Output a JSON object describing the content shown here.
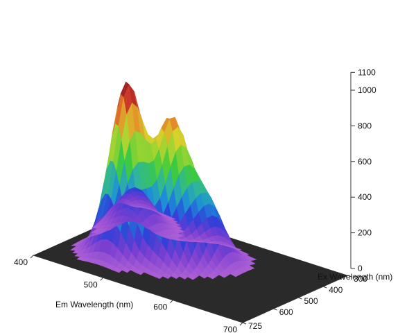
{
  "chart_data": {
    "type": "surface",
    "em_axis": {
      "label": "Em Wavelength (nm)",
      "ticks": [
        400,
        500,
        600,
        700
      ],
      "range": [
        400,
        700
      ]
    },
    "ex_axis": {
      "label": "Ex Wavelength (nm)",
      "ticks": [
        300,
        400,
        500,
        600,
        725
      ],
      "range": [
        300,
        725
      ]
    },
    "z_axis": {
      "label": "",
      "ticks": [
        0,
        200,
        400,
        600,
        800,
        1000,
        1100
      ],
      "range": [
        0,
        1100
      ]
    },
    "peaks": [
      {
        "em": 475,
        "ex": 560,
        "intensity": 950
      },
      {
        "em": 525,
        "ex": 520,
        "intensity": 760
      },
      {
        "em": 555,
        "ex": 460,
        "intensity": 320
      },
      {
        "em": 440,
        "ex": 420,
        "intensity": 170
      },
      {
        "em": 420,
        "ex": 380,
        "intensity": 110
      }
    ],
    "colormap": [
      "#b061d6",
      "#7a3fd0",
      "#2f3fd8",
      "#1d8ed8",
      "#2fb59c",
      "#3ecb3c",
      "#8fd334",
      "#d6d22d",
      "#e38a2a",
      "#c8342a",
      "#8e1a22"
    ],
    "floor_color": "#2a2a2a"
  }
}
